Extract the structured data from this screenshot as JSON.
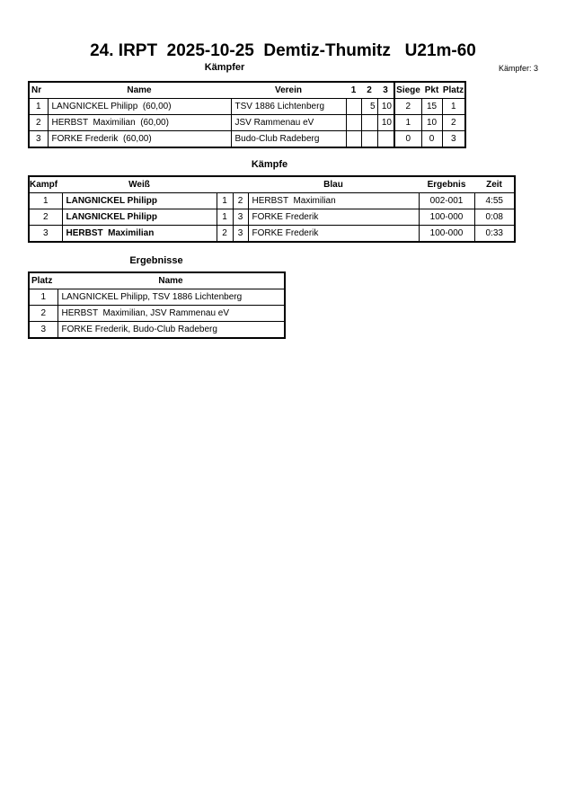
{
  "title": "24. IRPT  2025-10-25  Demtiz-Thumitz   U21m-60",
  "fighters": {
    "heading": "Kämpfer",
    "count_label": "Kämpfer: 3",
    "headers": {
      "nr": "Nr",
      "name": "Name",
      "verein": "Verein",
      "c1": "1",
      "c2": "2",
      "c3": "3",
      "siege": "Siege",
      "pkt": "Pkt",
      "platz": "Platz"
    },
    "rows": [
      {
        "nr": "1",
        "name": "LANGNICKEL Philipp  (60,00)",
        "verein": "TSV 1886 Lichtenberg",
        "c1": "",
        "c2": "5",
        "c3": "10",
        "siege": "2",
        "pkt": "15",
        "platz": "1"
      },
      {
        "nr": "2",
        "name": "HERBST  Maximilian  (60,00)",
        "verein": "JSV Rammenau eV",
        "c1": "",
        "c2": "",
        "c3": "10",
        "siege": "1",
        "pkt": "10",
        "platz": "2"
      },
      {
        "nr": "3",
        "name": "FORKE Frederik  (60,00)",
        "verein": "Budo-Club Radeberg",
        "c1": "",
        "c2": "",
        "c3": "",
        "siege": "0",
        "pkt": "0",
        "platz": "3"
      }
    ]
  },
  "fights": {
    "heading": "Kämpfe",
    "headers": {
      "kampf": "Kampf",
      "weiss": "Weiß",
      "blau": "Blau",
      "ergebnis": "Ergebnis",
      "zeit": "Zeit"
    },
    "rows": [
      {
        "kampf": "1",
        "weiss": "LANGNICKEL Philipp",
        "w": "1",
        "b": "2",
        "blau": "HERBST  Maximilian",
        "ergebnis": "002-001",
        "zeit": "4:55"
      },
      {
        "kampf": "2",
        "weiss": "LANGNICKEL Philipp",
        "w": "1",
        "b": "3",
        "blau": "FORKE Frederik",
        "ergebnis": "100-000",
        "zeit": "0:08"
      },
      {
        "kampf": "3",
        "weiss": "HERBST  Maximilian",
        "w": "2",
        "b": "3",
        "blau": "FORKE Frederik",
        "ergebnis": "100-000",
        "zeit": "0:33"
      }
    ]
  },
  "results": {
    "heading": "Ergebnisse",
    "headers": {
      "platz": "Platz",
      "name": "Name"
    },
    "rows": [
      {
        "platz": "1",
        "name": "LANGNICKEL Philipp, TSV 1886 Lichtenberg"
      },
      {
        "platz": "2",
        "name": "HERBST  Maximilian, JSV Rammenau eV"
      },
      {
        "platz": "3",
        "name": "FORKE Frederik, Budo-Club Radeberg"
      }
    ]
  }
}
